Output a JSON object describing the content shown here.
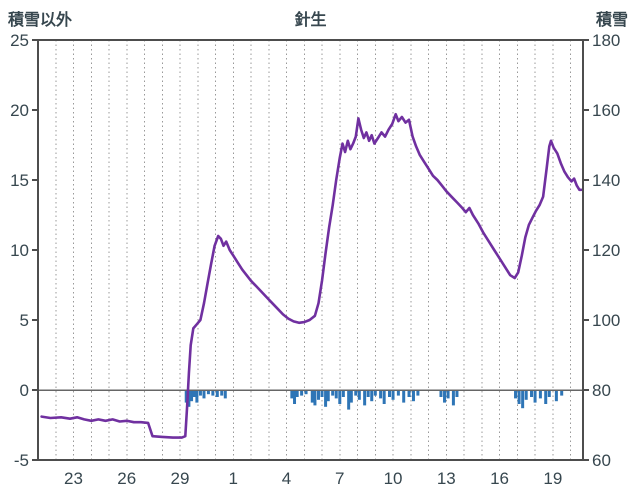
{
  "chart_data": {
    "type": "line",
    "title": "針生",
    "left_axis": {
      "label": "積雪以外",
      "min": -5,
      "max": 25,
      "ticks": [
        25,
        20,
        15,
        10,
        5,
        0,
        -5
      ]
    },
    "right_axis": {
      "label": "積雪",
      "min": 60,
      "max": 180,
      "ticks": [
        180,
        160,
        140,
        120,
        100,
        80,
        60
      ]
    },
    "x_axis": {
      "min": 0,
      "max": 30.7,
      "gridline_interval_days": 1,
      "tick_labels": [
        {
          "label": "23",
          "x": 2
        },
        {
          "label": "26",
          "x": 5
        },
        {
          "label": "29",
          "x": 8
        },
        {
          "label": "1",
          "x": 11
        },
        {
          "label": "4",
          "x": 14
        },
        {
          "label": "7",
          "x": 17
        },
        {
          "label": "10",
          "x": 20
        },
        {
          "label": "13",
          "x": 23
        },
        {
          "label": "16",
          "x": 26
        },
        {
          "label": "19",
          "x": 29
        }
      ]
    },
    "zero_line_left_value": 0,
    "colors": {
      "line": "#7030A0",
      "bars": "#2E75B6",
      "text": "#37474F",
      "grid": "#999999",
      "frame": "#4D4D4D",
      "zero_line": "#666666"
    },
    "series": [
      {
        "name": "line_series",
        "type": "line",
        "color": "#7030A0",
        "points": [
          [
            0.2,
            -1.9
          ],
          [
            0.7,
            -2.0
          ],
          [
            1.3,
            -1.95
          ],
          [
            1.8,
            -2.05
          ],
          [
            2.2,
            -1.95
          ],
          [
            2.6,
            -2.1
          ],
          [
            3.0,
            -2.2
          ],
          [
            3.4,
            -2.1
          ],
          [
            3.8,
            -2.2
          ],
          [
            4.2,
            -2.1
          ],
          [
            4.6,
            -2.25
          ],
          [
            5.0,
            -2.2
          ],
          [
            5.4,
            -2.3
          ],
          [
            5.8,
            -2.3
          ],
          [
            6.2,
            -2.35
          ],
          [
            6.45,
            -3.3
          ],
          [
            7.0,
            -3.35
          ],
          [
            7.6,
            -3.4
          ],
          [
            8.1,
            -3.4
          ],
          [
            8.3,
            -3.3
          ],
          [
            8.4,
            -1.2
          ],
          [
            8.5,
            1.2
          ],
          [
            8.6,
            3.2
          ],
          [
            8.75,
            4.4
          ],
          [
            8.95,
            4.7
          ],
          [
            9.15,
            5.0
          ],
          [
            9.35,
            6.2
          ],
          [
            9.55,
            7.6
          ],
          [
            9.75,
            9.0
          ],
          [
            9.95,
            10.3
          ],
          [
            10.15,
            11.0
          ],
          [
            10.3,
            10.8
          ],
          [
            10.45,
            10.3
          ],
          [
            10.6,
            10.6
          ],
          [
            10.8,
            10.0
          ],
          [
            11.0,
            9.6
          ],
          [
            11.25,
            9.1
          ],
          [
            11.5,
            8.6
          ],
          [
            11.75,
            8.2
          ],
          [
            12.0,
            7.8
          ],
          [
            12.3,
            7.4
          ],
          [
            12.6,
            7.0
          ],
          [
            12.9,
            6.6
          ],
          [
            13.2,
            6.2
          ],
          [
            13.5,
            5.8
          ],
          [
            13.8,
            5.4
          ],
          [
            14.1,
            5.1
          ],
          [
            14.4,
            4.9
          ],
          [
            14.7,
            4.8
          ],
          [
            15.0,
            4.85
          ],
          [
            15.3,
            5.0
          ],
          [
            15.6,
            5.3
          ],
          [
            15.8,
            6.2
          ],
          [
            16.0,
            7.8
          ],
          [
            16.2,
            9.8
          ],
          [
            16.4,
            11.6
          ],
          [
            16.6,
            13.2
          ],
          [
            16.8,
            15.0
          ],
          [
            17.0,
            16.6
          ],
          [
            17.15,
            17.6
          ],
          [
            17.3,
            17.0
          ],
          [
            17.45,
            17.8
          ],
          [
            17.6,
            17.2
          ],
          [
            17.75,
            17.6
          ],
          [
            17.9,
            18.1
          ],
          [
            18.05,
            19.4
          ],
          [
            18.2,
            18.6
          ],
          [
            18.35,
            18.0
          ],
          [
            18.5,
            18.4
          ],
          [
            18.65,
            17.8
          ],
          [
            18.8,
            18.2
          ],
          [
            18.95,
            17.6
          ],
          [
            19.15,
            18.0
          ],
          [
            19.35,
            18.4
          ],
          [
            19.55,
            18.1
          ],
          [
            19.75,
            18.6
          ],
          [
            19.95,
            19.0
          ],
          [
            20.15,
            19.7
          ],
          [
            20.3,
            19.2
          ],
          [
            20.5,
            19.5
          ],
          [
            20.7,
            19.1
          ],
          [
            20.9,
            19.3
          ],
          [
            21.1,
            18.1
          ],
          [
            21.3,
            17.4
          ],
          [
            21.5,
            16.8
          ],
          [
            21.75,
            16.3
          ],
          [
            22.0,
            15.8
          ],
          [
            22.25,
            15.3
          ],
          [
            22.5,
            15.0
          ],
          [
            22.75,
            14.6
          ],
          [
            23.0,
            14.2
          ],
          [
            23.3,
            13.8
          ],
          [
            23.6,
            13.4
          ],
          [
            23.9,
            13.0
          ],
          [
            24.1,
            12.7
          ],
          [
            24.3,
            13.0
          ],
          [
            24.5,
            12.5
          ],
          [
            24.8,
            11.9
          ],
          [
            25.1,
            11.2
          ],
          [
            25.4,
            10.6
          ],
          [
            25.7,
            10.0
          ],
          [
            26.0,
            9.4
          ],
          [
            26.3,
            8.8
          ],
          [
            26.6,
            8.2
          ],
          [
            26.85,
            8.0
          ],
          [
            27.05,
            8.4
          ],
          [
            27.25,
            9.6
          ],
          [
            27.45,
            10.9
          ],
          [
            27.65,
            11.8
          ],
          [
            27.85,
            12.3
          ],
          [
            28.05,
            12.8
          ],
          [
            28.25,
            13.2
          ],
          [
            28.45,
            13.8
          ],
          [
            28.65,
            15.8
          ],
          [
            28.8,
            17.4
          ],
          [
            28.9,
            17.8
          ],
          [
            29.05,
            17.3
          ],
          [
            29.25,
            16.9
          ],
          [
            29.45,
            16.2
          ],
          [
            29.65,
            15.6
          ],
          [
            29.85,
            15.2
          ],
          [
            30.05,
            14.9
          ],
          [
            30.2,
            15.1
          ],
          [
            30.35,
            14.6
          ],
          [
            30.5,
            14.3
          ],
          [
            30.6,
            14.3
          ]
        ]
      },
      {
        "name": "bar_series",
        "type": "bar",
        "color": "#2E75B6",
        "bars": [
          [
            8.35,
            0.9
          ],
          [
            8.5,
            1.2
          ],
          [
            8.65,
            0.8
          ],
          [
            8.8,
            0.5
          ],
          [
            8.95,
            0.9
          ],
          [
            9.15,
            0.4
          ],
          [
            9.35,
            0.6
          ],
          [
            9.6,
            0.3
          ],
          [
            9.85,
            0.4
          ],
          [
            10.1,
            0.5
          ],
          [
            10.35,
            0.4
          ],
          [
            10.55,
            0.6
          ],
          [
            14.3,
            0.6
          ],
          [
            14.45,
            1.0
          ],
          [
            14.6,
            0.5
          ],
          [
            14.85,
            0.4
          ],
          [
            15.1,
            0.3
          ],
          [
            15.45,
            0.9
          ],
          [
            15.6,
            1.1
          ],
          [
            15.8,
            0.7
          ],
          [
            16.0,
            0.5
          ],
          [
            16.2,
            1.2
          ],
          [
            16.35,
            0.8
          ],
          [
            16.6,
            0.4
          ],
          [
            16.8,
            0.6
          ],
          [
            17.0,
            1.0
          ],
          [
            17.2,
            0.5
          ],
          [
            17.5,
            1.4
          ],
          [
            17.65,
            0.9
          ],
          [
            17.9,
            0.4
          ],
          [
            18.1,
            0.7
          ],
          [
            18.4,
            1.1
          ],
          [
            18.6,
            0.5
          ],
          [
            18.8,
            0.8
          ],
          [
            19.0,
            0.4
          ],
          [
            19.3,
            0.6
          ],
          [
            19.5,
            1.0
          ],
          [
            19.8,
            0.5
          ],
          [
            20.0,
            0.7
          ],
          [
            20.3,
            0.4
          ],
          [
            20.6,
            0.9
          ],
          [
            20.9,
            0.5
          ],
          [
            21.15,
            0.8
          ],
          [
            21.4,
            0.4
          ],
          [
            22.7,
            0.5
          ],
          [
            22.9,
            0.9
          ],
          [
            23.1,
            0.6
          ],
          [
            23.4,
            1.1
          ],
          [
            23.6,
            0.5
          ],
          [
            26.9,
            0.6
          ],
          [
            27.1,
            1.0
          ],
          [
            27.3,
            1.3
          ],
          [
            27.5,
            0.7
          ],
          [
            27.8,
            0.5
          ],
          [
            28.0,
            0.9
          ],
          [
            28.3,
            0.6
          ],
          [
            28.6,
            1.0
          ],
          [
            28.8,
            0.5
          ],
          [
            29.2,
            0.8
          ],
          [
            29.5,
            0.4
          ]
        ]
      }
    ]
  }
}
